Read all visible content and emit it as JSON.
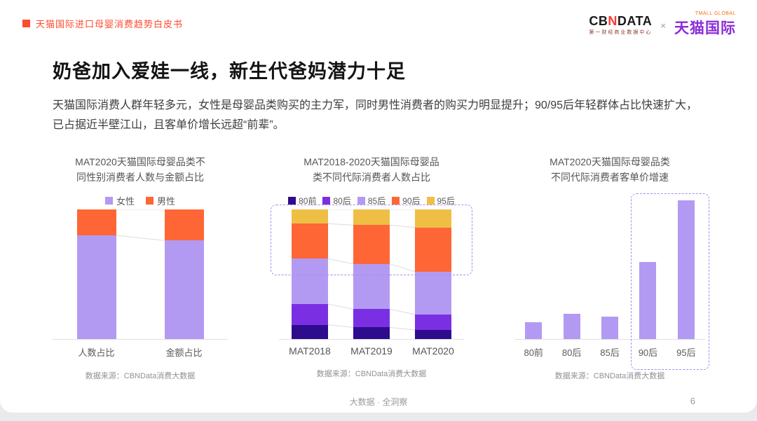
{
  "page": {
    "header": {
      "doc_title": "天猫国际进口母婴消费趋势白皮书",
      "cbndata": {
        "part1": "CB",
        "part2": "N",
        "part3": "DATA",
        "tagline": "第一财经商业数据中心"
      },
      "cross": "×",
      "tmall": {
        "name": "天猫国际",
        "tagline": "TMALL GLOBAL"
      }
    },
    "title": "奶爸加入爱娃一线，新生代爸妈潜力十足",
    "body": "天猫国际消费人群年轻多元，女性是母婴品类购买的主力军，同时男性消费者的购买力明显提升；90/95后年轻群体占比快速扩大，已占据近半壁江山，且客单价增长远超“前辈”。",
    "footer": {
      "center": "大数据 · 全洞察",
      "page_number": "6"
    }
  },
  "chart_data": [
    {
      "type": "bar",
      "subtype": "stacked-100-percent",
      "title": "MAT2020天猫国际母婴品类不同性别消费者人数与金额占比",
      "categories": [
        "人数占比",
        "金额占比"
      ],
      "series": [
        {
          "name": "女性",
          "color": "#B29AF3",
          "values": [
            80,
            76
          ]
        },
        {
          "name": "男性",
          "color": "#FF6635",
          "values": [
            20,
            24
          ]
        }
      ],
      "xlabel": "",
      "ylabel": "",
      "ylim": [
        0,
        100
      ],
      "legend_position": "top",
      "grid": false,
      "source": "数据来源：CBNData消费大数据"
    },
    {
      "type": "bar",
      "subtype": "stacked-100-percent",
      "title": "MAT2018-2020天猫国际母婴品类不同代际消费者人数占比",
      "categories": [
        "MAT2018",
        "MAT2019",
        "MAT2020"
      ],
      "series": [
        {
          "name": "80前",
          "color": "#2D0C8E",
          "values": [
            11,
            9,
            7
          ]
        },
        {
          "name": "80后",
          "color": "#7B2FE3",
          "values": [
            16,
            14,
            12
          ]
        },
        {
          "name": "85后",
          "color": "#B29AF3",
          "values": [
            35,
            35,
            33
          ]
        },
        {
          "name": "90后",
          "color": "#FF6635",
          "values": [
            27,
            30,
            34
          ]
        },
        {
          "name": "95后",
          "color": "#EFBF45",
          "values": [
            11,
            12,
            14
          ]
        }
      ],
      "xlabel": "",
      "ylabel": "",
      "ylim": [
        0,
        100
      ],
      "legend_position": "top",
      "grid": false,
      "highlight": "90后+95后 segments outlined with dashed box",
      "source": "数据来源：CBNData消费大数据"
    },
    {
      "type": "bar",
      "title": "MAT2020天猫国际母婴品类不同代际消费者客单价增速",
      "categories": [
        "80前",
        "80后",
        "85后",
        "90后",
        "95后"
      ],
      "values": [
        12,
        18,
        16,
        55,
        99
      ],
      "bar_color": "#B29AF3",
      "xlabel": "",
      "ylabel": "",
      "ylim": [
        0,
        100
      ],
      "grid": false,
      "highlight": "90后 and 95后 bars outlined with dashed box",
      "source": "数据来源：CBNData消费大数据"
    }
  ]
}
